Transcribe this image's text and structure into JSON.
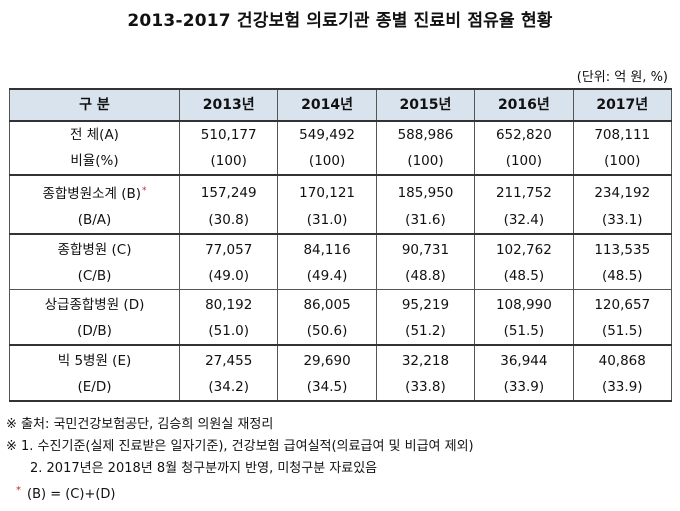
{
  "title": "2013-2017 건강보험 의료기관 종별 진료비 점유율 현황",
  "unit": "(단위: 억 원, %)",
  "table": {
    "headers": [
      "구 분",
      "2013년",
      "2014년",
      "2015년",
      "2016년",
      "2017년"
    ],
    "rows": [
      {
        "label": "전 체(A)",
        "values": [
          "510,177",
          "549,492",
          "588,986",
          "652,820",
          "708,111"
        ]
      },
      {
        "label": "비율(%)",
        "values": [
          "(100)",
          "(100)",
          "(100)",
          "(100)",
          "(100)"
        ]
      },
      {
        "label": "종합병원소계 (B)",
        "star": "*",
        "values": [
          "157,249",
          "170,121",
          "185,950",
          "211,752",
          "234,192"
        ]
      },
      {
        "label": "(B/A)",
        "values": [
          "(30.8)",
          "(31.0)",
          "(31.6)",
          "(32.4)",
          "(33.1)"
        ]
      },
      {
        "label": "종합병원 (C)",
        "values": [
          "77,057",
          "84,116",
          "90,731",
          "102,762",
          "113,535"
        ]
      },
      {
        "label": "(C/B)",
        "values": [
          "(49.0)",
          "(49.4)",
          "(48.8)",
          "(48.5)",
          "(48.5)"
        ]
      },
      {
        "label": "상급종합병원 (D)",
        "values": [
          "80,192",
          "86,005",
          "95,219",
          "108,990",
          "120,657"
        ]
      },
      {
        "label": "(D/B)",
        "values": [
          "(51.0)",
          "(50.6)",
          "(51.2)",
          "(51.5)",
          "(51.5)"
        ]
      },
      {
        "label": "빅 5병원 (E)",
        "values": [
          "27,455",
          "29,690",
          "32,218",
          "36,944",
          "40,868"
        ]
      },
      {
        "label": "(E/D)",
        "values": [
          "(34.2)",
          "(34.5)",
          "(33.8)",
          "(33.9)",
          "(33.9)"
        ]
      }
    ]
  },
  "notes": {
    "source": "※ 출처: 국민건강보험공단, 김승희 의원실 재정리",
    "note1": "※ 1. 수진기준(실제 진료받은 일자기준), 건강보험 급여실적(의료급여 및 비급여 제외)",
    "note2": "2. 2017년은 2018년 8월 청구분까지 반영, 미청구분 자료있음",
    "footnote_star": "*",
    "footnote": "(B) = (C)+(D)"
  }
}
